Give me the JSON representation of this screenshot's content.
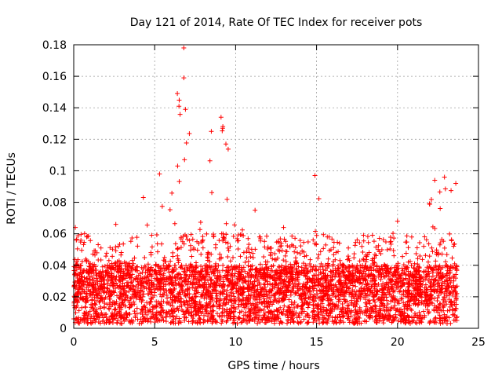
{
  "chart_data": {
    "type": "scatter",
    "title": "Day 121 of 2014, Rate Of TEC Index for receiver pots",
    "xlabel": "GPS time / hours",
    "ylabel": "ROTI / TECUs",
    "xlim": [
      0,
      25
    ],
    "ylim": [
      0,
      0.18
    ],
    "x_ticks": [
      0,
      5,
      10,
      15,
      20,
      25
    ],
    "x_tick_labels": [
      "0",
      "5",
      "10",
      "15",
      "20",
      "25"
    ],
    "y_ticks": [
      0,
      0.02,
      0.04,
      0.06,
      0.08,
      0.1,
      0.12,
      0.14,
      0.16,
      0.18
    ],
    "y_tick_labels": [
      "0",
      "0.02",
      "0.04",
      "0.06",
      "0.08",
      "0.1",
      "0.12",
      "0.14",
      "0.16",
      "0.18"
    ],
    "grid": true,
    "marker": "plus",
    "marker_color": "#ff0000",
    "series": [
      {
        "name": "ROTI",
        "sample_points": [
          {
            "x": 0.1,
            "y": 0.064
          },
          {
            "x": 0.8,
            "y": 0.058
          },
          {
            "x": 2.6,
            "y": 0.066
          },
          {
            "x": 4.3,
            "y": 0.083
          },
          {
            "x": 5.3,
            "y": 0.098
          },
          {
            "x": 6.4,
            "y": 0.149
          },
          {
            "x": 6.5,
            "y": 0.141
          },
          {
            "x": 6.8,
            "y": 0.178
          },
          {
            "x": 6.8,
            "y": 0.159
          },
          {
            "x": 6.9,
            "y": 0.139
          },
          {
            "x": 8.5,
            "y": 0.125
          },
          {
            "x": 9.1,
            "y": 0.134
          },
          {
            "x": 9.2,
            "y": 0.127
          },
          {
            "x": 9.4,
            "y": 0.117
          },
          {
            "x": 11.2,
            "y": 0.075
          },
          {
            "x": 14.9,
            "y": 0.097
          },
          {
            "x": 20.0,
            "y": 0.068
          },
          {
            "x": 22.3,
            "y": 0.094
          },
          {
            "x": 22.9,
            "y": 0.096
          },
          {
            "x": 23.6,
            "y": 0.092
          }
        ]
      }
    ],
    "peak_envelope": {
      "x": [
        0,
        1,
        2,
        3,
        4,
        4.5,
        5,
        5.5,
        6,
        6.5,
        6.8,
        7,
        7.5,
        8,
        8.5,
        9,
        9.5,
        10,
        11,
        12,
        13,
        14,
        15,
        16,
        17,
        18,
        19,
        20,
        21,
        22,
        22.5,
        23,
        23.7
      ],
      "y": [
        0.065,
        0.058,
        0.05,
        0.055,
        0.062,
        0.084,
        0.065,
        0.098,
        0.09,
        0.15,
        0.178,
        0.14,
        0.095,
        0.095,
        0.125,
        0.134,
        0.12,
        0.065,
        0.075,
        0.06,
        0.065,
        0.068,
        0.097,
        0.055,
        0.055,
        0.06,
        0.06,
        0.068,
        0.06,
        0.085,
        0.094,
        0.096,
        0.092
      ]
    }
  }
}
